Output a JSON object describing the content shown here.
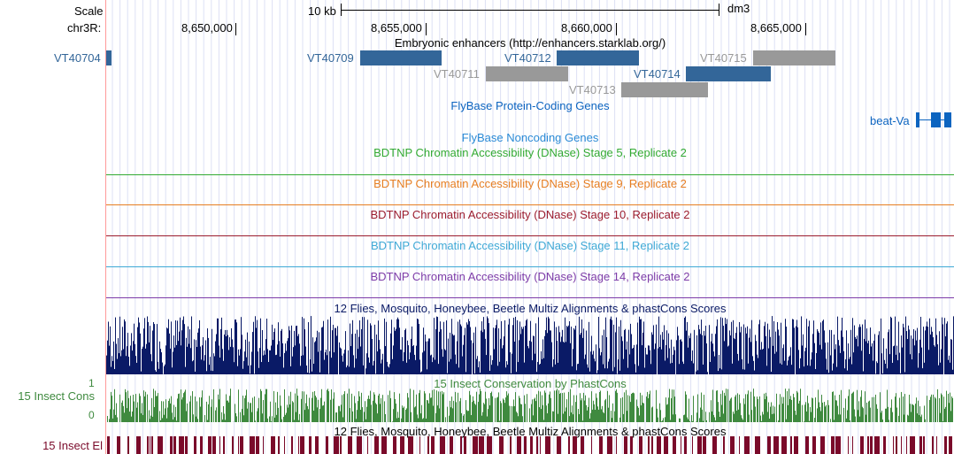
{
  "ruler": {
    "scale_label": "Scale",
    "chrom_label": "chr3R:",
    "scale_bar_text": "10 kb",
    "assembly": "dm3",
    "ticks": [
      "8,650,000",
      "8,655,000",
      "8,660,000",
      "8,665,000"
    ]
  },
  "enhancers": {
    "title": "Embryonic enhancers (http://enhancers.starklab.org/)",
    "items": [
      {
        "name": "VT40704",
        "color": "#336699"
      },
      {
        "name": "VT40709",
        "color": "#336699"
      },
      {
        "name": "VT40712",
        "color": "#336699"
      },
      {
        "name": "VT40711",
        "color": "#999999"
      },
      {
        "name": "VT40715",
        "color": "#999999"
      },
      {
        "name": "VT40714",
        "color": "#336699"
      },
      {
        "name": "VT40713",
        "color": "#999999"
      }
    ]
  },
  "flybase_coding": {
    "title": "FlyBase Protein-Coding Genes",
    "gene": "beat-Va",
    "color": "#0c64c0"
  },
  "flybase_noncoding": {
    "title": "FlyBase Noncoding Genes",
    "color": "#2a8ad6"
  },
  "dnase_tracks": [
    {
      "title": "BDTNP Chromatin Accessibility (DNase) Stage 5, Replicate 2",
      "color": "#33aa33"
    },
    {
      "title": "BDTNP Chromatin Accessibility (DNase) Stage 9, Replicate 2",
      "color": "#e67e22"
    },
    {
      "title": "BDTNP Chromatin Accessibility (DNase) Stage 10, Replicate 2",
      "color": "#9b1c2e"
    },
    {
      "title": "BDTNP Chromatin Accessibility (DNase) Stage 11, Replicate 2",
      "color": "#3fa9d6"
    },
    {
      "title": "BDTNP Chromatin Accessibility (DNase) Stage 14, Replicate 2",
      "color": "#7d3ca8"
    }
  ],
  "multiz_track": {
    "title": "12 Flies, Mosquito, Honeybee, Beetle Multiz Alignments & phastCons Scores",
    "color": "#0a1a66"
  },
  "insect_cons": {
    "title": "15 Insect Conservation by PhastCons",
    "side_label": "15 Insect Cons",
    "ymax": "1",
    "ymin": "0",
    "color": "#3f8a3f"
  },
  "insect_el": {
    "title": "12 Flies, Mosquito, Honeybee, Beetle Multiz Alignments & phastCons Scores",
    "side_label": "15 Insect El",
    "color": "#7a0a2a"
  }
}
